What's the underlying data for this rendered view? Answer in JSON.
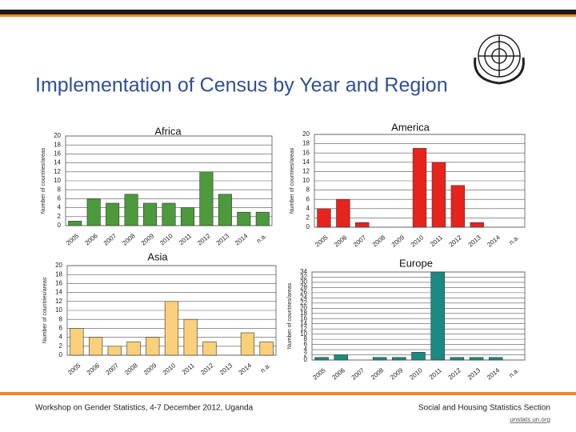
{
  "title": "Implementation of Census by Year and Region",
  "footer": {
    "left": "Workshop on Gender Statistics, 4-7 December 2012, Uganda",
    "right": "Social and Housing Statistics Section",
    "url": "unstats.un.org"
  },
  "chart_data": [
    {
      "type": "bar",
      "title": "Africa",
      "y_label": "Number of countries/areas",
      "color": "#4c9a3c",
      "grid": true,
      "categories": [
        "2005",
        "2006",
        "2007",
        "2008",
        "2009",
        "2010",
        "2011",
        "2012",
        "2013",
        "2014",
        "n.a."
      ],
      "values": [
        1,
        6,
        5,
        7,
        5,
        5,
        4,
        12,
        7,
        3,
        3
      ],
      "ylim": [
        0,
        20
      ],
      "yticks": [
        0,
        2,
        4,
        6,
        8,
        10,
        12,
        14,
        16,
        18,
        20
      ]
    },
    {
      "type": "bar",
      "title": "America",
      "y_label": "Number of countries/areas",
      "color": "#e8231e",
      "grid": true,
      "categories": [
        "2005",
        "2006",
        "2007",
        "2008",
        "2009",
        "2010",
        "2011",
        "2012",
        "2013",
        "2014",
        "n.a."
      ],
      "values": [
        4,
        6,
        1,
        0,
        0,
        17,
        14,
        9,
        1,
        0,
        0
      ],
      "ylim": [
        0,
        20
      ],
      "yticks": [
        0,
        2,
        4,
        6,
        8,
        10,
        12,
        14,
        16,
        18,
        20
      ]
    },
    {
      "type": "bar",
      "title": "Asia",
      "y_label": "Number of countries/areas",
      "color": "#fbd07a",
      "grid": true,
      "categories": [
        "2005",
        "2006",
        "2007",
        "2008",
        "2009",
        "2010",
        "2011",
        "2012",
        "2013",
        "2014",
        "n.a."
      ],
      "values": [
        6,
        4,
        2,
        3,
        4,
        12,
        8,
        3,
        0,
        5,
        3
      ],
      "ylim": [
        0,
        20
      ],
      "yticks": [
        0,
        2,
        4,
        6,
        8,
        10,
        12,
        14,
        16,
        18,
        20
      ]
    },
    {
      "type": "bar",
      "title": "Europe",
      "y_label": "Number of countries/areas",
      "color": "#1b8a80",
      "grid": true,
      "categories": [
        "2005",
        "2006",
        "2007",
        "2008",
        "2009",
        "2010",
        "2011",
        "2012",
        "2013",
        "2014",
        "n.a."
      ],
      "values": [
        1,
        2,
        0,
        1,
        1,
        3,
        34,
        1,
        1,
        1,
        0
      ],
      "ylim": [
        0,
        34
      ],
      "yticks": [
        0,
        2,
        4,
        6,
        8,
        10,
        12,
        14,
        16,
        18,
        20,
        22,
        24,
        26,
        28,
        30,
        32,
        34
      ]
    }
  ]
}
